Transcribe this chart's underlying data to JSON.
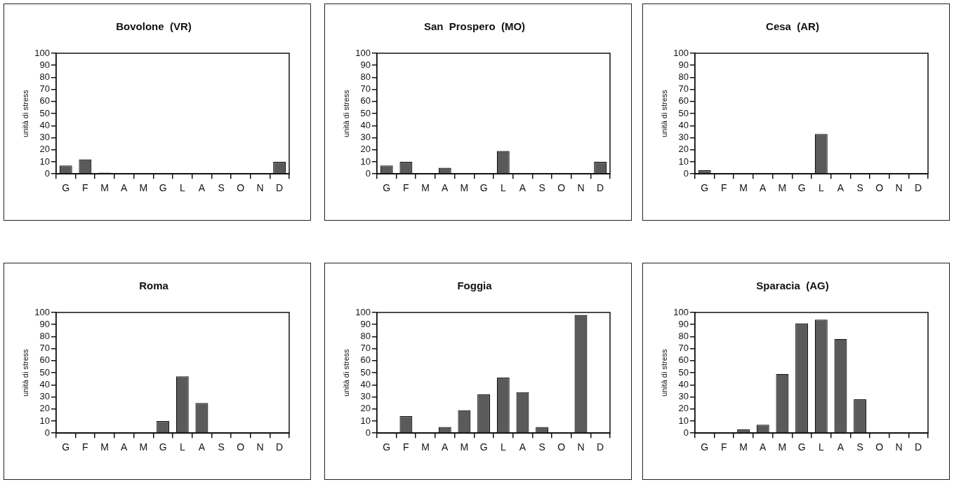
{
  "chart_data": [
    {
      "type": "bar",
      "title": "Bovolone  (VR)",
      "ylabel": "unità di stress",
      "categories": [
        "G",
        "F",
        "M",
        "A",
        "M",
        "G",
        "L",
        "A",
        "S",
        "O",
        "N",
        "D"
      ],
      "values": [
        7,
        12,
        1,
        0,
        0,
        0,
        0,
        0,
        0,
        0,
        0,
        10
      ],
      "color": "#5a5a5a",
      "ylim": [
        0,
        100
      ],
      "yticks": [
        0,
        10,
        20,
        30,
        40,
        50,
        60,
        70,
        80,
        90,
        100
      ]
    },
    {
      "type": "bar",
      "title": "San  Prospero  (MO)",
      "ylabel": "unità di stress",
      "categories": [
        "G",
        "F",
        "M",
        "A",
        "M",
        "G",
        "L",
        "A",
        "S",
        "O",
        "N",
        "D"
      ],
      "values": [
        7,
        10,
        0,
        5,
        0,
        0,
        19,
        0,
        0,
        0,
        0,
        10
      ],
      "color": "#5a5a5a",
      "ylim": [
        0,
        100
      ],
      "yticks": [
        0,
        10,
        20,
        30,
        40,
        50,
        60,
        70,
        80,
        90,
        100
      ]
    },
    {
      "type": "bar",
      "title": "Cesa  (AR)",
      "ylabel": "unità di stress",
      "categories": [
        "G",
        "F",
        "M",
        "A",
        "M",
        "G",
        "L",
        "A",
        "S",
        "O",
        "N",
        "D"
      ],
      "values": [
        3,
        0,
        0,
        0,
        0,
        0,
        33,
        0,
        0,
        0,
        0,
        0
      ],
      "color": "#5a5a5a",
      "ylim": [
        0,
        100
      ],
      "yticks": [
        0,
        10,
        20,
        30,
        40,
        50,
        60,
        70,
        80,
        90,
        100
      ]
    },
    {
      "type": "bar",
      "title": "Roma",
      "ylabel": "unità di stress",
      "categories": [
        "G",
        "F",
        "M",
        "A",
        "M",
        "G",
        "L",
        "A",
        "S",
        "O",
        "N",
        "D"
      ],
      "values": [
        0,
        0,
        0,
        0,
        0,
        10,
        47,
        25,
        0,
        0,
        0,
        0
      ],
      "color": "#5a5a5a",
      "ylim": [
        0,
        100
      ],
      "yticks": [
        0,
        10,
        20,
        30,
        40,
        50,
        60,
        70,
        80,
        90,
        100
      ]
    },
    {
      "type": "bar",
      "title": "Foggia",
      "ylabel": "unità di stress",
      "categories": [
        "G",
        "F",
        "M",
        "A",
        "M",
        "G",
        "L",
        "A",
        "S",
        "O",
        "N",
        "D"
      ],
      "values": [
        0,
        14,
        0,
        5,
        19,
        32,
        46,
        34,
        5,
        0,
        98,
        0
      ],
      "color": "#5a5a5a",
      "ylim": [
        0,
        100
      ],
      "yticks": [
        0,
        10,
        20,
        30,
        40,
        50,
        60,
        70,
        80,
        90,
        100
      ]
    },
    {
      "type": "bar",
      "title": "Sparacia  (AG)",
      "ylabel": "unità di stress",
      "categories": [
        "G",
        "F",
        "M",
        "A",
        "M",
        "G",
        "L",
        "A",
        "S",
        "O",
        "N",
        "D"
      ],
      "values": [
        0,
        0,
        3,
        7,
        49,
        91,
        94,
        78,
        28,
        0,
        0,
        0
      ],
      "color": "#5a5a5a",
      "ylim": [
        0,
        100
      ],
      "yticks": [
        0,
        10,
        20,
        30,
        40,
        50,
        60,
        70,
        80,
        90,
        100
      ]
    }
  ]
}
